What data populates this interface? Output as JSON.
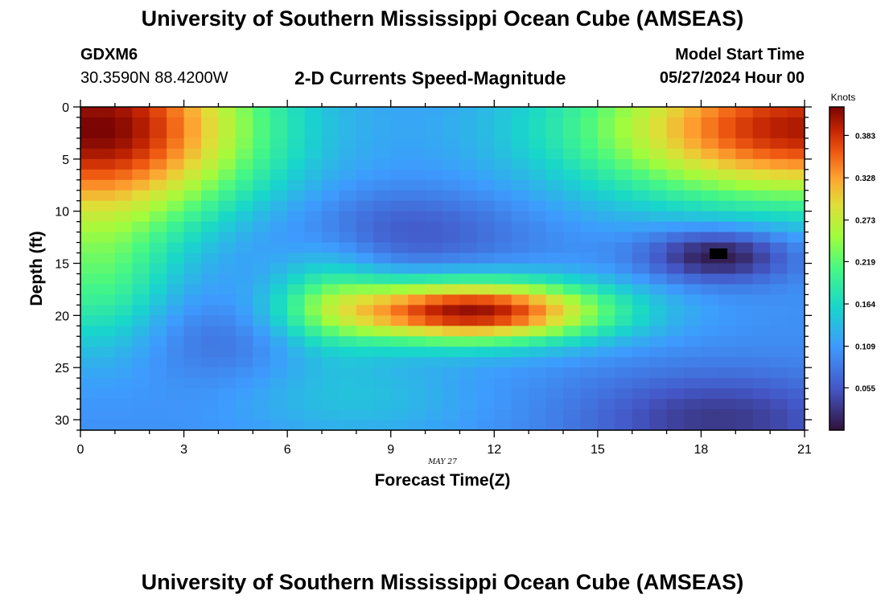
{
  "header": {
    "title": "University of Southern Mississippi Ocean Cube (AMSEAS)",
    "station": "GDXM6",
    "coords": "30.3590N  88.4200W",
    "model_start_label": "Model Start Time",
    "model_start_value": "05/27/2024 Hour 00"
  },
  "footer": {
    "title": "University of Southern Mississippi Ocean Cube (AMSEAS)"
  },
  "chart_data": {
    "type": "heatmap",
    "title": "2-D Currents Speed-Magnitude",
    "xlabel": "Forecast Time(Z)",
    "ylabel": "Depth (ft)",
    "date_label": "MAY 27",
    "xlim": [
      0,
      21
    ],
    "ylim": [
      0,
      31
    ],
    "x_ticks": [
      "0",
      "3",
      "6",
      "9",
      "12",
      "15",
      "18",
      "21"
    ],
    "y_ticks": [
      "0",
      "5",
      "10",
      "15",
      "20",
      "25",
      "30"
    ],
    "colorbar": {
      "unit": "Knots",
      "ticks": [
        "0.055",
        "0.109",
        "0.164",
        "0.219",
        "0.273",
        "0.328",
        "0.383"
      ],
      "range": [
        0.0,
        0.42
      ]
    },
    "grid": {
      "columns": 42,
      "rows": 31
    }
  }
}
